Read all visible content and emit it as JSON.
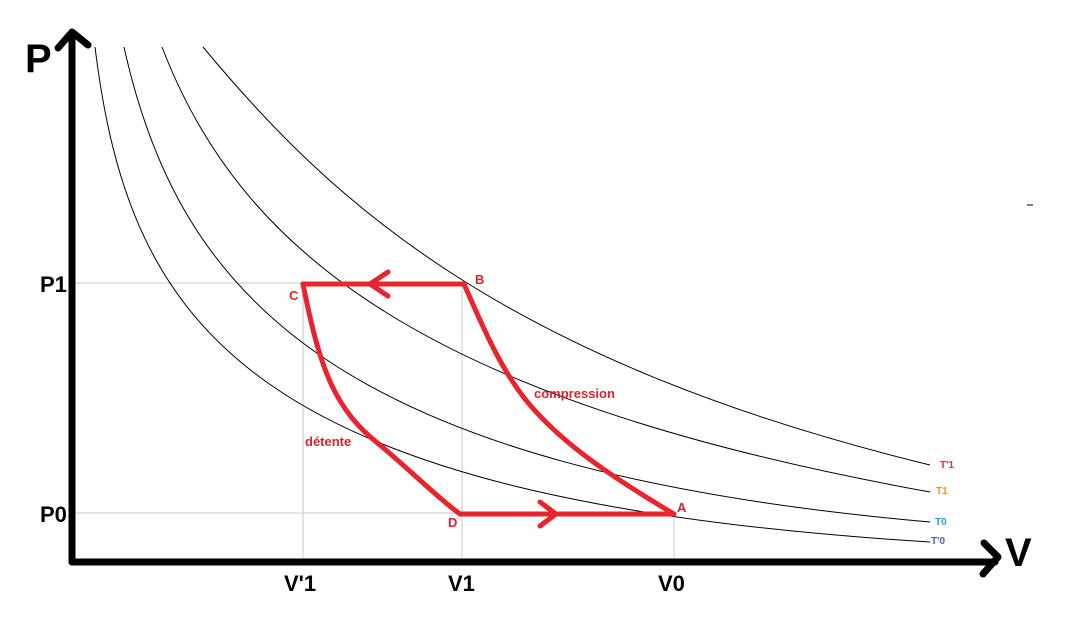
{
  "axes": {
    "y_label": "P",
    "x_label": "V",
    "y_ticks": [
      "P1",
      "P0"
    ],
    "x_ticks": [
      "V'1",
      "V1",
      "V0"
    ]
  },
  "points": {
    "A": "A",
    "B": "B",
    "C": "C",
    "D": "D"
  },
  "annotations": {
    "compression": "compression",
    "detente": "détente"
  },
  "isotherms": [
    {
      "label": "T'1",
      "color": "#e0302c"
    },
    {
      "label": "T1",
      "color": "#f0902c"
    },
    {
      "label": "T0",
      "color": "#2c9ae0"
    },
    {
      "label": "T'0",
      "color": "#4a5ec0"
    }
  ],
  "colors": {
    "cycle": "#e8242c",
    "point_label": "#d8242c",
    "axis": "#000000",
    "curve": "#000000",
    "guide": "#c8c8c8"
  }
}
